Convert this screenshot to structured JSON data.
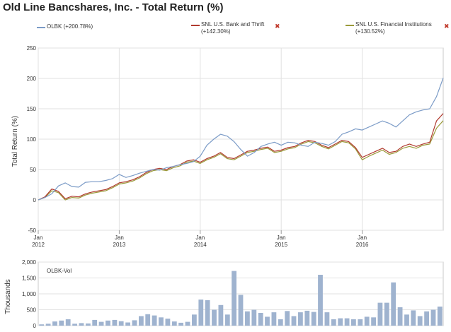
{
  "page": {
    "title": "Old Line Bancshares, Inc. - Total Return (%)"
  },
  "legend": [
    {
      "name": "OLBK (+200.78%)",
      "color": "#7b9bc7",
      "closable": false
    },
    {
      "name_line1": "SNL U.S. Bank and Thrift",
      "name_line2": "(+142.30%)",
      "color": "#b03a2e",
      "closable": true
    },
    {
      "name_line1": "SNL U.S. Financial Institutions",
      "name_line2": "(+130.52%)",
      "color": "#9a9a3a",
      "closable": true
    }
  ],
  "chart_data": [
    {
      "type": "line",
      "title": "Old Line Bancshares, Inc. - Total Return (%)",
      "ylabel": "Total Return (%)",
      "xlabel": "",
      "ylim": [
        -50,
        250
      ],
      "yticks": [
        "250",
        "200",
        "150",
        "100",
        "50",
        "0",
        "-50"
      ],
      "ytick_values": [
        250,
        200,
        150,
        100,
        50,
        0,
        -50
      ],
      "xticks": [
        {
          "month": "Jan",
          "year": "2012",
          "index": 0
        },
        {
          "month": "Jan",
          "year": "2013",
          "index": 12
        },
        {
          "month": "Jan",
          "year": "2014",
          "index": 24
        },
        {
          "month": "Jan",
          "year": "2015",
          "index": 36
        },
        {
          "month": "Jan",
          "year": "2016",
          "index": 48
        }
      ],
      "n_points": 61,
      "series": [
        {
          "name": "OLBK",
          "color": "#7b9bc7",
          "values": [
            0,
            4,
            10,
            23,
            28,
            22,
            21,
            29,
            30,
            30,
            32,
            35,
            42,
            37,
            40,
            44,
            47,
            50,
            49,
            53,
            55,
            58,
            60,
            63,
            72,
            90,
            100,
            108,
            105,
            96,
            83,
            72,
            78,
            88,
            92,
            95,
            90,
            95,
            94,
            90,
            88,
            95,
            93,
            90,
            96,
            108,
            112,
            117,
            115,
            120,
            125,
            130,
            126,
            120,
            130,
            140,
            145,
            148,
            150,
            170,
            200.78
          ]
        },
        {
          "name": "SNL U.S. Bank and Thrift",
          "color": "#b03a2e",
          "values": [
            0,
            5,
            18,
            14,
            2,
            6,
            5,
            10,
            13,
            15,
            17,
            22,
            28,
            30,
            33,
            38,
            45,
            50,
            52,
            50,
            55,
            58,
            64,
            66,
            62,
            68,
            72,
            78,
            70,
            68,
            74,
            80,
            82,
            85,
            87,
            80,
            82,
            86,
            88,
            94,
            98,
            96,
            90,
            86,
            92,
            98,
            96,
            86,
            70,
            75,
            80,
            85,
            78,
            80,
            88,
            92,
            88,
            92,
            95,
            130,
            142.3
          ]
        },
        {
          "name": "SNL U.S. Financial Institutions",
          "color": "#9a9a3a",
          "values": [
            0,
            4,
            15,
            12,
            0,
            4,
            3,
            8,
            11,
            13,
            15,
            20,
            26,
            28,
            31,
            36,
            43,
            48,
            50,
            48,
            53,
            56,
            62,
            64,
            60,
            66,
            70,
            76,
            68,
            66,
            72,
            78,
            80,
            83,
            85,
            78,
            80,
            84,
            86,
            92,
            96,
            94,
            88,
            84,
            90,
            96,
            94,
            84,
            66,
            72,
            77,
            82,
            75,
            78,
            85,
            88,
            85,
            90,
            92,
            118,
            130.52
          ]
        }
      ]
    },
    {
      "type": "bar",
      "title": "OLBK-Vol",
      "ylabel": "Thousands",
      "ylim": [
        0,
        2000
      ],
      "yticks": [
        "2,000",
        "1,500",
        "1,000",
        "500",
        "0"
      ],
      "ytick_values": [
        2000,
        1500,
        1000,
        500,
        0
      ],
      "color": "#9fb3cf",
      "values": [
        40,
        60,
        130,
        160,
        200,
        60,
        80,
        70,
        180,
        120,
        160,
        180,
        140,
        100,
        170,
        300,
        360,
        320,
        260,
        220,
        130,
        90,
        120,
        350,
        820,
        800,
        500,
        650,
        350,
        1720,
        970,
        450,
        500,
        400,
        280,
        420,
        200,
        460,
        300,
        420,
        470,
        430,
        1600,
        420,
        200,
        230,
        230,
        200,
        200,
        280,
        260,
        720,
        720,
        1360,
        580,
        350,
        480,
        300,
        450,
        500,
        600
      ]
    }
  ]
}
